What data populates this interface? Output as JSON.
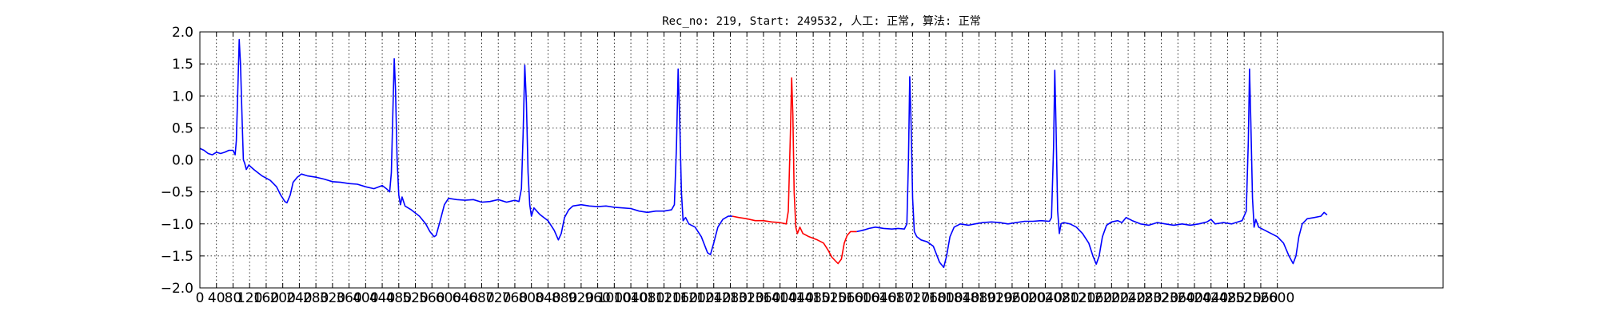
{
  "chart_data": {
    "type": "line",
    "title": "Rec_no: 219, Start: 249532, 人工: 正常, 算法: 正常",
    "xlabel": "",
    "ylabel": "",
    "xlim": [
      0,
      3000
    ],
    "ylim": [
      -2.0,
      2.0
    ],
    "grid": true,
    "x_ticks": [
      0,
      40,
      80,
      120,
      160,
      200,
      240,
      280,
      320,
      360,
      400,
      440,
      480,
      520,
      560,
      600,
      640,
      680,
      720,
      760,
      800,
      840,
      880,
      920,
      960,
      1000,
      1040,
      1080,
      1120,
      1160,
      1200,
      1240,
      1280,
      1320,
      1360,
      1400,
      1440,
      1480,
      1520,
      1560,
      1600,
      1640,
      1680,
      1720,
      1760,
      1800,
      1840,
      1880,
      1920,
      1960,
      2000,
      2040,
      2080,
      2120,
      2160,
      2200,
      2240,
      2280,
      2320,
      2360,
      2400,
      2440,
      2480,
      2520,
      2560,
      2600
    ],
    "y_ticks": [
      -2.0,
      -1.5,
      -1.0,
      -0.5,
      0.0,
      0.5,
      1.0,
      1.5,
      2.0
    ],
    "y_tick_labels": [
      "−2.0",
      "−1.5",
      "−1.0",
      "−0.5",
      "0.0",
      "0.5",
      "1.0",
      "1.5",
      "2.0"
    ],
    "x_tick_labels": [
      "0",
      "40",
      "80",
      "120",
      "160",
      "200",
      "240",
      "280",
      "320",
      "360",
      "400",
      "440",
      "480",
      "520",
      "560",
      "600",
      "640",
      "680",
      "720",
      "760",
      "800",
      "840",
      "880",
      "920",
      "960",
      "1000",
      "1040",
      "1080",
      "1120",
      "1160",
      "1200",
      "1240",
      "1280",
      "1320",
      "1360",
      "1400",
      "1440",
      "1480",
      "1520",
      "1560",
      "1600",
      "1640",
      "1680",
      "1720",
      "1760",
      "1800",
      "1840",
      "1880",
      "1920",
      "1960",
      "2000",
      "2040",
      "2080",
      "2120",
      "2160",
      "2200",
      "2240",
      "2280",
      "2320",
      "2360",
      "2400",
      "2440",
      "2480",
      "2520",
      "2560",
      "2600"
    ],
    "series": [
      {
        "color": "#0000ff",
        "points": [
          [
            0,
            0.18
          ],
          [
            10,
            0.15
          ],
          [
            20,
            0.1
          ],
          [
            30,
            0.08
          ],
          [
            40,
            0.12
          ],
          [
            50,
            0.1
          ],
          [
            60,
            0.12
          ],
          [
            70,
            0.15
          ],
          [
            80,
            0.15
          ],
          [
            85,
            0.08
          ],
          [
            88,
            0.3
          ],
          [
            92,
            1.2
          ],
          [
            95,
            1.88
          ],
          [
            98,
            1.5
          ],
          [
            102,
            0.6
          ],
          [
            105,
            0.0
          ],
          [
            108,
            -0.05
          ],
          [
            112,
            -0.15
          ],
          [
            118,
            -0.08
          ],
          [
            130,
            -0.15
          ],
          [
            150,
            -0.25
          ],
          [
            170,
            -0.32
          ],
          [
            185,
            -0.42
          ],
          [
            195,
            -0.55
          ],
          [
            205,
            -0.65
          ],
          [
            210,
            -0.67
          ],
          [
            218,
            -0.55
          ],
          [
            225,
            -0.35
          ],
          [
            235,
            -0.27
          ],
          [
            245,
            -0.22
          ],
          [
            260,
            -0.25
          ],
          [
            280,
            -0.27
          ],
          [
            300,
            -0.3
          ],
          [
            320,
            -0.34
          ],
          [
            340,
            -0.35
          ],
          [
            360,
            -0.37
          ],
          [
            380,
            -0.38
          ],
          [
            400,
            -0.42
          ],
          [
            420,
            -0.45
          ],
          [
            440,
            -0.4
          ],
          [
            450,
            -0.45
          ],
          [
            458,
            -0.5
          ],
          [
            462,
            -0.2
          ],
          [
            466,
            0.8
          ],
          [
            469,
            1.58
          ],
          [
            472,
            1.1
          ],
          [
            476,
            0.0
          ],
          [
            480,
            -0.55
          ],
          [
            484,
            -0.7
          ],
          [
            488,
            -0.58
          ],
          [
            495,
            -0.72
          ],
          [
            510,
            -0.78
          ],
          [
            530,
            -0.88
          ],
          [
            545,
            -1.0
          ],
          [
            555,
            -1.12
          ],
          [
            565,
            -1.2
          ],
          [
            570,
            -1.18
          ],
          [
            580,
            -0.95
          ],
          [
            590,
            -0.7
          ],
          [
            600,
            -0.6
          ],
          [
            620,
            -0.62
          ],
          [
            640,
            -0.63
          ],
          [
            660,
            -0.62
          ],
          [
            680,
            -0.66
          ],
          [
            700,
            -0.65
          ],
          [
            720,
            -0.62
          ],
          [
            740,
            -0.66
          ],
          [
            760,
            -0.63
          ],
          [
            770,
            -0.65
          ],
          [
            776,
            -0.45
          ],
          [
            780,
            0.4
          ],
          [
            784,
            1.48
          ],
          [
            788,
            0.9
          ],
          [
            792,
            -0.2
          ],
          [
            796,
            -0.7
          ],
          [
            800,
            -0.88
          ],
          [
            806,
            -0.75
          ],
          [
            820,
            -0.85
          ],
          [
            840,
            -0.95
          ],
          [
            855,
            -1.1
          ],
          [
            865,
            -1.25
          ],
          [
            872,
            -1.15
          ],
          [
            880,
            -0.9
          ],
          [
            890,
            -0.78
          ],
          [
            900,
            -0.72
          ],
          [
            920,
            -0.7
          ],
          [
            940,
            -0.72
          ],
          [
            960,
            -0.73
          ],
          [
            980,
            -0.72
          ],
          [
            1000,
            -0.74
          ],
          [
            1020,
            -0.75
          ],
          [
            1040,
            -0.76
          ],
          [
            1060,
            -0.8
          ],
          [
            1080,
            -0.82
          ],
          [
            1100,
            -0.8
          ],
          [
            1120,
            -0.8
          ],
          [
            1138,
            -0.78
          ],
          [
            1145,
            -0.7
          ],
          [
            1150,
            0.2
          ],
          [
            1154,
            1.42
          ],
          [
            1158,
            0.6
          ],
          [
            1162,
            -0.5
          ],
          [
            1166,
            -0.95
          ],
          [
            1172,
            -0.9
          ],
          [
            1180,
            -1.0
          ],
          [
            1195,
            -1.05
          ],
          [
            1210,
            -1.2
          ],
          [
            1225,
            -1.45
          ],
          [
            1232,
            -1.48
          ],
          [
            1240,
            -1.3
          ],
          [
            1250,
            -1.05
          ],
          [
            1262,
            -0.93
          ],
          [
            1275,
            -0.88
          ],
          [
            1285,
            -0.88
          ]
        ]
      },
      {
        "color": "#ff0000",
        "points": [
          [
            1285,
            -0.88
          ],
          [
            1300,
            -0.9
          ],
          [
            1320,
            -0.92
          ],
          [
            1340,
            -0.95
          ],
          [
            1360,
            -0.95
          ],
          [
            1380,
            -0.97
          ],
          [
            1400,
            -0.98
          ],
          [
            1415,
            -1.0
          ],
          [
            1420,
            -0.8
          ],
          [
            1425,
            0.4
          ],
          [
            1428,
            1.28
          ],
          [
            1431,
            0.7
          ],
          [
            1434,
            -0.5
          ],
          [
            1438,
            -1.05
          ],
          [
            1442,
            -1.15
          ],
          [
            1448,
            -1.05
          ],
          [
            1455,
            -1.15
          ],
          [
            1470,
            -1.2
          ],
          [
            1490,
            -1.25
          ],
          [
            1505,
            -1.3
          ],
          [
            1515,
            -1.4
          ],
          [
            1525,
            -1.52
          ],
          [
            1540,
            -1.62
          ],
          [
            1548,
            -1.55
          ],
          [
            1555,
            -1.3
          ],
          [
            1562,
            -1.18
          ],
          [
            1570,
            -1.12
          ],
          [
            1585,
            -1.12
          ]
        ]
      },
      {
        "color": "#0000ff",
        "points": [
          [
            1585,
            -1.12
          ],
          [
            1600,
            -1.1
          ],
          [
            1615,
            -1.07
          ],
          [
            1630,
            -1.05
          ],
          [
            1650,
            -1.07
          ],
          [
            1670,
            -1.08
          ],
          [
            1685,
            -1.07
          ],
          [
            1700,
            -1.08
          ],
          [
            1706,
            -1.0
          ],
          [
            1710,
            0.0
          ],
          [
            1713,
            1.3
          ],
          [
            1716,
            0.6
          ],
          [
            1720,
            -0.6
          ],
          [
            1724,
            -1.12
          ],
          [
            1730,
            -1.2
          ],
          [
            1740,
            -1.25
          ],
          [
            1755,
            -1.28
          ],
          [
            1770,
            -1.35
          ],
          [
            1785,
            -1.6
          ],
          [
            1795,
            -1.68
          ],
          [
            1802,
            -1.5
          ],
          [
            1810,
            -1.2
          ],
          [
            1820,
            -1.05
          ],
          [
            1835,
            -1.0
          ],
          [
            1855,
            -1.02
          ],
          [
            1870,
            -1.0
          ],
          [
            1890,
            -0.98
          ],
          [
            1910,
            -0.97
          ],
          [
            1930,
            -0.98
          ],
          [
            1950,
            -1.0
          ],
          [
            1970,
            -0.98
          ],
          [
            1990,
            -0.96
          ],
          [
            2010,
            -0.96
          ],
          [
            2030,
            -0.95
          ],
          [
            2050,
            -0.96
          ],
          [
            2055,
            -0.9
          ],
          [
            2060,
            0.2
          ],
          [
            2063,
            1.4
          ],
          [
            2066,
            0.5
          ],
          [
            2070,
            -0.8
          ],
          [
            2074,
            -1.15
          ],
          [
            2078,
            -1.0
          ],
          [
            2085,
            -0.98
          ],
          [
            2100,
            -1.0
          ],
          [
            2115,
            -1.05
          ],
          [
            2130,
            -1.15
          ],
          [
            2145,
            -1.3
          ],
          [
            2155,
            -1.5
          ],
          [
            2163,
            -1.63
          ],
          [
            2170,
            -1.5
          ],
          [
            2178,
            -1.2
          ],
          [
            2188,
            -1.02
          ],
          [
            2200,
            -0.97
          ],
          [
            2215,
            -0.95
          ],
          [
            2225,
            -0.98
          ],
          [
            2235,
            -0.9
          ],
          [
            2250,
            -0.95
          ],
          [
            2270,
            -1.0
          ],
          [
            2290,
            -1.02
          ],
          [
            2310,
            -0.98
          ],
          [
            2330,
            -1.0
          ],
          [
            2350,
            -1.02
          ],
          [
            2370,
            -1.0
          ],
          [
            2390,
            -1.02
          ],
          [
            2410,
            -1.0
          ],
          [
            2430,
            -0.97
          ],
          [
            2440,
            -0.93
          ],
          [
            2450,
            -1.0
          ],
          [
            2470,
            -0.98
          ],
          [
            2490,
            -1.0
          ],
          [
            2505,
            -0.97
          ],
          [
            2515,
            -0.95
          ],
          [
            2525,
            -0.8
          ],
          [
            2530,
            0.3
          ],
          [
            2533,
            1.42
          ],
          [
            2536,
            0.6
          ],
          [
            2540,
            -0.6
          ],
          [
            2544,
            -1.05
          ],
          [
            2548,
            -0.93
          ],
          [
            2555,
            -1.05
          ],
          [
            2570,
            -1.1
          ],
          [
            2585,
            -1.15
          ],
          [
            2600,
            -1.2
          ],
          [
            2615,
            -1.3
          ],
          [
            2628,
            -1.5
          ],
          [
            2638,
            -1.62
          ],
          [
            2645,
            -1.5
          ],
          [
            2652,
            -1.2
          ],
          [
            2660,
            -1.0
          ],
          [
            2672,
            -0.92
          ],
          [
            2690,
            -0.9
          ],
          [
            2705,
            -0.88
          ],
          [
            2713,
            -0.82
          ],
          [
            2720,
            -0.86
          ]
        ]
      }
    ]
  }
}
